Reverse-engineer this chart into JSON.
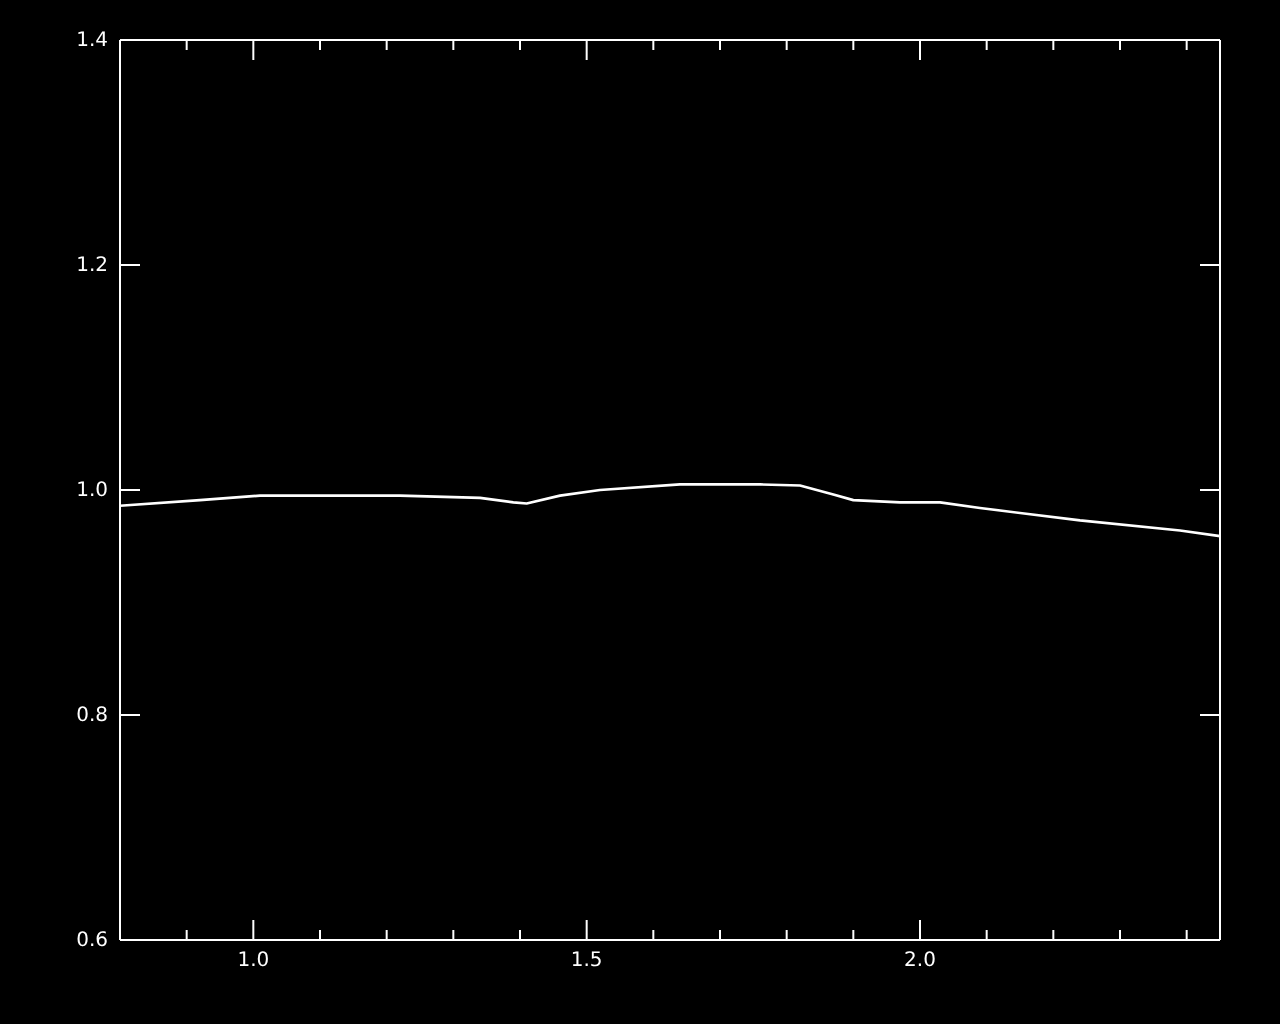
{
  "chart_data": {
    "type": "line",
    "x": [
      0.8,
      0.92,
      1.01,
      1.22,
      1.34,
      1.39,
      1.41,
      1.46,
      1.52,
      1.64,
      1.76,
      1.82,
      1.87,
      1.9,
      1.97,
      2.03,
      2.09,
      2.24,
      2.39,
      2.45
    ],
    "series": [
      {
        "color": "#ffffff",
        "values": [
          0.986,
          0.991,
          0.995,
          0.995,
          0.993,
          0.989,
          0.988,
          0.995,
          1.0,
          1.005,
          1.005,
          1.004,
          0.996,
          0.991,
          0.989,
          0.989,
          0.984,
          0.973,
          0.964,
          0.959
        ]
      }
    ],
    "xlim": [
      0.8,
      2.45
    ],
    "ylim": [
      0.6,
      1.4
    ],
    "xticks": [
      {
        "value": 0.9,
        "label": null
      },
      {
        "value": 1.0,
        "label": "1.0"
      },
      {
        "value": 1.1,
        "label": null
      },
      {
        "value": 1.2,
        "label": null
      },
      {
        "value": 1.3,
        "label": null
      },
      {
        "value": 1.4,
        "label": null
      },
      1.5,
      {
        "value": 1.6,
        "label": null
      },
      {
        "value": 1.7,
        "label": null
      },
      {
        "value": 1.8,
        "label": null
      },
      {
        "value": 1.9,
        "label": null
      },
      {
        "value": 2.0,
        "label": "2.0"
      },
      {
        "value": 2.1,
        "label": null
      },
      {
        "value": 2.2,
        "label": null
      },
      {
        "value": 2.3,
        "label": null
      },
      {
        "value": 2.4,
        "label": null
      }
    ],
    "yticks": [
      0.6,
      0.8,
      {
        "value": 1.0,
        "label": "1.0"
      },
      1.2,
      1.4
    ],
    "grid": false,
    "marker": "none",
    "line_style": "solid"
  }
}
